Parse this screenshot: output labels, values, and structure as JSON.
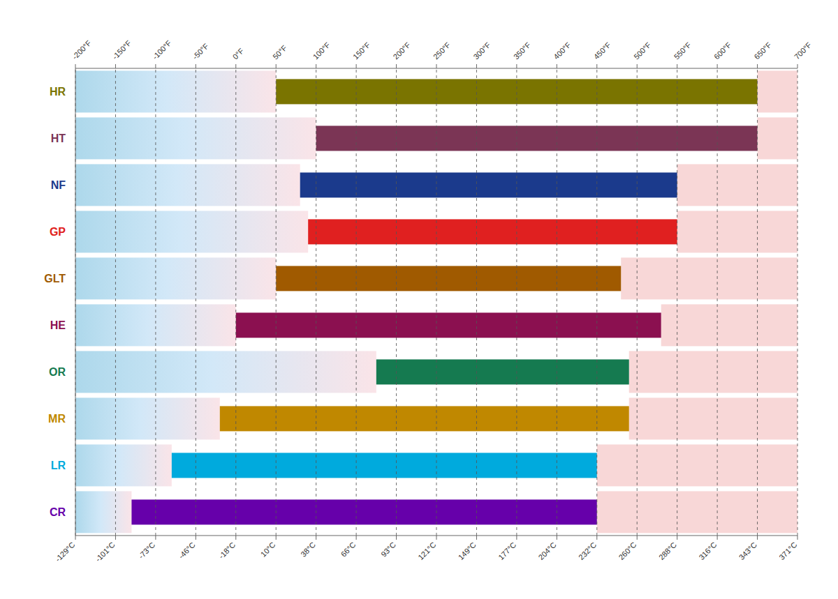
{
  "chart_data": {
    "type": "bar",
    "orientation": "horizontal",
    "categories": [
      "HR",
      "HT",
      "NF",
      "GP",
      "GLT",
      "HE",
      "OR",
      "MR",
      "LR",
      "CR"
    ],
    "values": [
      [
        50,
        650
      ],
      [
        100,
        650
      ],
      [
        80,
        550
      ],
      [
        90,
        550
      ],
      [
        50,
        480
      ],
      [
        0,
        530
      ],
      [
        175,
        490
      ],
      [
        -20,
        490
      ],
      [
        -80,
        450
      ],
      [
        -130,
        450
      ]
    ],
    "colors": [
      "#7A7400",
      "#7B3555",
      "#1B3A8C",
      "#E02020",
      "#A05A00",
      "#8B1050",
      "#157A50",
      "#C08800",
      "#00AADD",
      "#6600AA"
    ],
    "xlim": [
      -200,
      700
    ],
    "xticks": [
      {
        "value": -200,
        "label": "-129°C"
      },
      {
        "value": -150,
        "label": "-101°C"
      },
      {
        "value": -100,
        "label": "-73°C"
      },
      {
        "value": -50,
        "label": "-46°C"
      },
      {
        "value": 0,
        "label": "-18°C"
      },
      {
        "value": 50,
        "label": "10°C"
      },
      {
        "value": 100,
        "label": "38°C"
      },
      {
        "value": 150,
        "label": "66°C"
      },
      {
        "value": 200,
        "label": "93°C"
      },
      {
        "value": 250,
        "label": "121°C"
      },
      {
        "value": 300,
        "label": "149°C"
      },
      {
        "value": 350,
        "label": "177°C"
      },
      {
        "value": 400,
        "label": "204°C"
      },
      {
        "value": 450,
        "label": "232°C"
      },
      {
        "value": 500,
        "label": "260°C"
      },
      {
        "value": 550,
        "label": "288°C"
      },
      {
        "value": 600,
        "label": "316°C"
      },
      {
        "value": 650,
        "label": "343°C"
      },
      {
        "value": 700,
        "label": "371°C"
      }
    ],
    "x2lim": [
      -200,
      700
    ],
    "x2ticks": [
      {
        "value": -200,
        "label": "-200°F"
      },
      {
        "value": -150,
        "label": "-150°F"
      },
      {
        "value": -100,
        "label": "-100°F"
      },
      {
        "value": -50,
        "label": "-50°F"
      },
      {
        "value": 0,
        "label": "0°F"
      },
      {
        "value": 50,
        "label": "50°F"
      },
      {
        "value": 100,
        "label": "100°F"
      },
      {
        "value": 150,
        "label": "150°F"
      },
      {
        "value": 200,
        "label": "200°F"
      },
      {
        "value": 250,
        "label": "250°F"
      },
      {
        "value": 300,
        "label": "300°F"
      },
      {
        "value": 350,
        "label": "350°F"
      },
      {
        "value": 400,
        "label": "400°F"
      },
      {
        "value": 450,
        "label": "450°F"
      },
      {
        "value": 500,
        "label": "500°F"
      },
      {
        "value": 550,
        "label": "550°F"
      },
      {
        "value": 600,
        "label": "600°F"
      },
      {
        "value": 650,
        "label": "650°F"
      },
      {
        "value": 700,
        "label": "700°F"
      }
    ],
    "grid": true
  }
}
